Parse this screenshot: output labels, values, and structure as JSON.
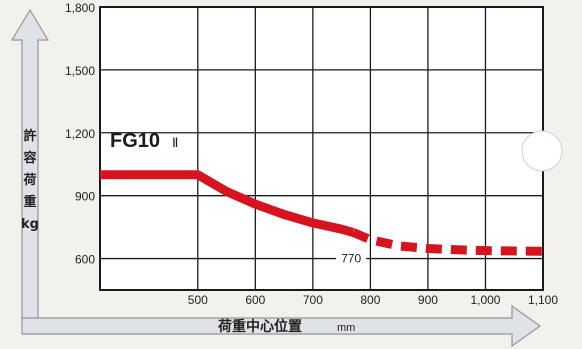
{
  "chart_data": {
    "type": "line",
    "title": "",
    "xlabel": "荷重中心位置",
    "xunit": "mm",
    "ylabel_lines": [
      "許",
      "容",
      "荷",
      "重",
      "kg"
    ],
    "xlim": [
      330,
      1100
    ],
    "ylim": [
      450,
      1800
    ],
    "x_ticks": [
      {
        "value": 500,
        "label": "500"
      },
      {
        "value": 600,
        "label": "600"
      },
      {
        "value": 700,
        "label": "700"
      },
      {
        "value": 800,
        "label": "800"
      },
      {
        "value": 900,
        "label": "900"
      },
      {
        "value": 1000,
        "label": "1,000"
      },
      {
        "value": 1100,
        "label": "1,100"
      }
    ],
    "y_ticks": [
      {
        "value": 600,
        "label": "600"
      },
      {
        "value": 900,
        "label": "900"
      },
      {
        "value": 1200,
        "label": "1,200"
      },
      {
        "value": 1500,
        "label": "1,500"
      },
      {
        "value": 1800,
        "label": "1,800"
      }
    ],
    "grid": true,
    "series": [
      {
        "name": "FG10",
        "name_suffix": "Ⅱ",
        "color": "#d6141f",
        "solid": [
          [
            330,
            1000
          ],
          [
            500,
            1000
          ],
          [
            550,
            920
          ],
          [
            600,
            860
          ],
          [
            650,
            810
          ],
          [
            700,
            770
          ],
          [
            750,
            740
          ],
          [
            770,
            725
          ]
        ],
        "dashed": [
          [
            770,
            725
          ],
          [
            800,
            690
          ],
          [
            850,
            660
          ],
          [
            900,
            648
          ],
          [
            950,
            642
          ],
          [
            1000,
            638
          ],
          [
            1050,
            636
          ],
          [
            1100,
            635
          ]
        ]
      }
    ],
    "annotations": [
      {
        "text": "770",
        "x": 770
      }
    ]
  }
}
